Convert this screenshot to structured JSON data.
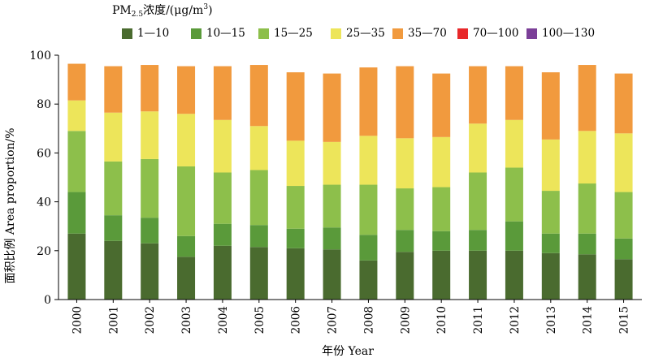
{
  "legend_title": {
    "pm": "PM",
    "sub": "2.5",
    "mid": "浓度/(μg/m",
    "sup": "3",
    "end": ")"
  },
  "chart_data": {
    "type": "bar",
    "stacked": true,
    "categories": [
      "2000",
      "2001",
      "2002",
      "2003",
      "2004",
      "2005",
      "2006",
      "2007",
      "2008",
      "2009",
      "2010",
      "2011",
      "2012",
      "2013",
      "2014",
      "2015"
    ],
    "series": [
      {
        "name": "1—10",
        "color": "#4a6b2f",
        "values": [
          27,
          24,
          23,
          17.5,
          22,
          21.5,
          21,
          20.5,
          16,
          19.5,
          20,
          20,
          20,
          19,
          18.5,
          16.5
        ]
      },
      {
        "name": "10—15",
        "color": "#5a9a3a",
        "values": [
          17,
          10.5,
          10.5,
          8.5,
          9,
          9,
          8,
          9,
          10.5,
          9,
          8,
          8.5,
          12,
          8,
          8.5,
          8.5
        ]
      },
      {
        "name": "15—25",
        "color": "#8dbf4b",
        "values": [
          25,
          22,
          24,
          28.5,
          21,
          22.5,
          17.5,
          17.5,
          20.5,
          17,
          18,
          23.5,
          22,
          17.5,
          20.5,
          19
        ]
      },
      {
        "name": "25—35",
        "color": "#ede55a",
        "values": [
          12.5,
          20,
          19.5,
          21.5,
          21.5,
          18,
          18.5,
          17.5,
          20,
          20.5,
          20.5,
          20,
          19.5,
          21,
          21.5,
          24
        ]
      },
      {
        "name": "35—70",
        "color": "#f19a3e",
        "values": [
          15,
          19,
          19,
          19.5,
          22,
          25,
          28,
          28,
          28,
          29.5,
          26,
          23.5,
          22,
          27.5,
          27,
          24.5
        ]
      },
      {
        "name": "70—100",
        "color": "#e8282a",
        "values": [
          0,
          0,
          0,
          0,
          0,
          0,
          0,
          0,
          0,
          0,
          0,
          0,
          0,
          0,
          0,
          0
        ]
      },
      {
        "name": "100—130",
        "color": "#7b3f98",
        "values": [
          0,
          0,
          0,
          0,
          0,
          0,
          0,
          0,
          0,
          0,
          0,
          0,
          0,
          0,
          0,
          0
        ]
      }
    ],
    "xlabel": "年份 Year",
    "ylabel": "面积比例 Area proportion/%",
    "ylim": [
      0,
      100
    ],
    "yticks": [
      "0",
      "20",
      "40",
      "60",
      "80",
      "100"
    ],
    "grid": false,
    "legend_position": "top"
  }
}
